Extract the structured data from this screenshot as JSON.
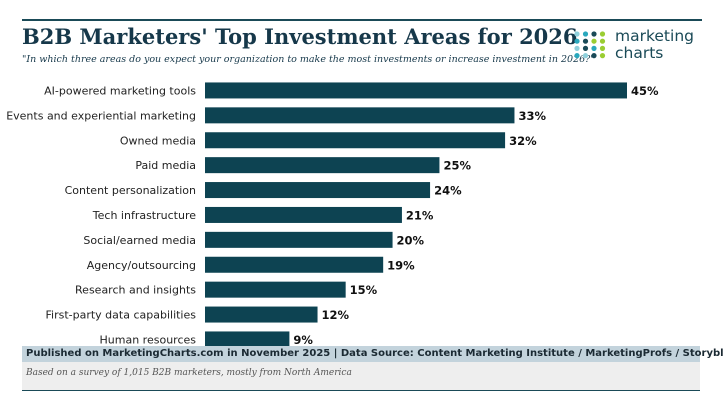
{
  "brand": {
    "logo_line1": "marketing",
    "logo_line2": "charts",
    "logo_dot_colors": [
      "#8fd0dc",
      "#2aa8bd",
      "#1a4a57",
      "#9acd32"
    ]
  },
  "colors": {
    "bar": "#0d4352",
    "title": "#16384a",
    "footer_band": "#c3d3dc",
    "footer_note_bg": "#eeeeee"
  },
  "chart_data": {
    "type": "bar",
    "orientation": "horizontal",
    "title": "B2B Marketers' Top Investment Areas for 2026",
    "subtitle": "\"In which three areas do you expect your organization to make the most investments or increase investment in 2026?\"",
    "categories": [
      "AI-powered marketing tools",
      "Events and experiential marketing",
      "Owned media",
      "Paid media",
      "Content personalization",
      "Tech infrastructure",
      "Social/earned media",
      "Agency/outsourcing",
      "Research and insights",
      "First-party data capabilities",
      "Human resources"
    ],
    "values": [
      45,
      33,
      32,
      25,
      24,
      21,
      20,
      19,
      15,
      12,
      9
    ],
    "value_labels": [
      "45%",
      "33%",
      "32%",
      "25%",
      "24%",
      "21%",
      "20%",
      "19%",
      "15%",
      "12%",
      "9%"
    ],
    "unit": "%",
    "xlim": [
      0,
      45
    ],
    "grid": false,
    "legend": "none"
  },
  "footer": {
    "source": "Published on MarketingCharts.com in November 2025 | Data Source: Content Marketing Institute / MarketingProfs / Storyblok",
    "note": "Based on a survey of 1,015 B2B marketers, mostly from North America"
  }
}
